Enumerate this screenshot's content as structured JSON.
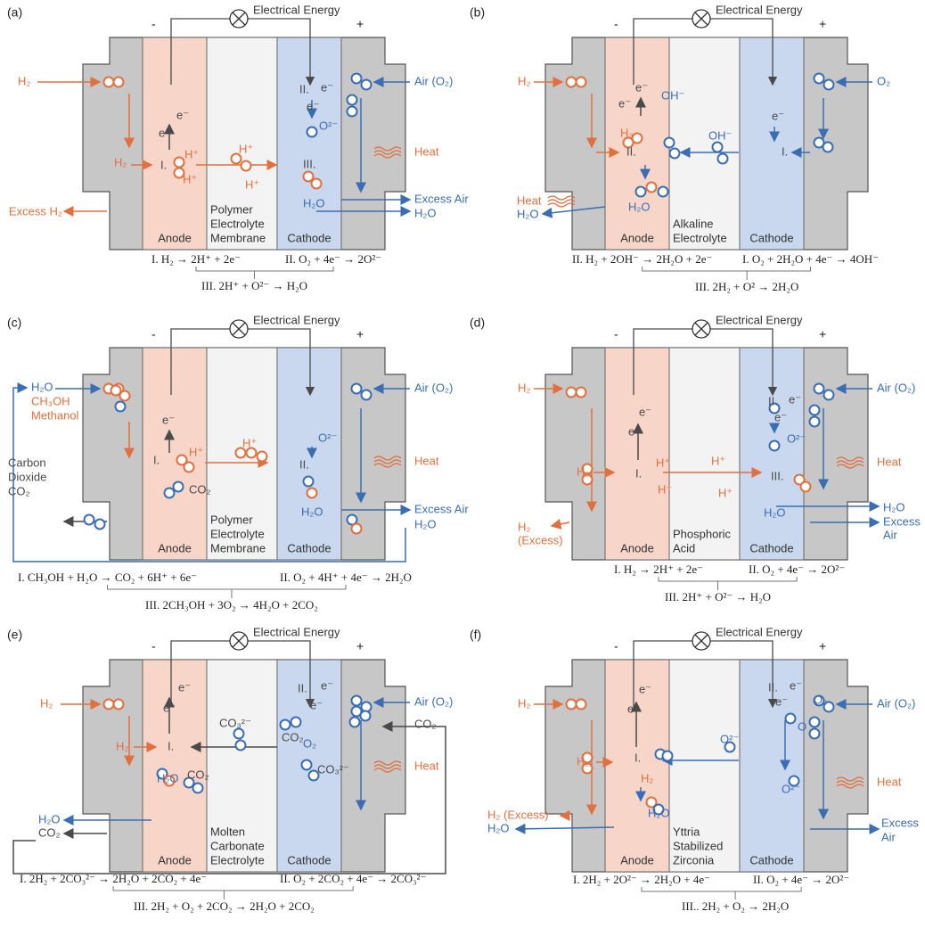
{
  "panels": [
    {
      "label": "(a)",
      "energy": "Electrical Energy",
      "minus": "-",
      "plus": "+",
      "anode": "Anode",
      "electrolyte": [
        "Polymer",
        "Electrolyte",
        "Membrane"
      ],
      "cathode": "Cathode",
      "texts": [
        "H₂",
        "Air (O₂)",
        "H₂",
        "Excess H₂",
        "Heat",
        "Excess Air",
        "H₂O",
        "e⁻",
        "e⁻",
        "I.",
        "H⁺",
        "H⁺",
        "H⁺",
        "H⁺",
        "II.",
        "e⁻",
        "e⁻",
        "O²⁻",
        "III.",
        "H₂O"
      ],
      "equations": [
        "I. H₂ → 2H⁺ + 2e⁻",
        "II. O₂ + 4e⁻ → 2O²⁻",
        "III. 2H⁺ + O²⁻ → H₂O"
      ]
    },
    {
      "label": "(b)",
      "energy": "Electrical Energy",
      "minus": "-",
      "plus": "+",
      "anode": "Anode",
      "electrolyte": [
        "Alkaline",
        "Electrolyte"
      ],
      "cathode": "Cathode",
      "texts": [
        "H₂",
        "O₂",
        "Heat",
        "H₂O",
        "e⁻",
        "e⁻",
        "OH⁻",
        "H₂",
        "II.",
        "OH⁻",
        "e⁻",
        "I.",
        "H₂O"
      ],
      "equations": [
        "II. H₂ + 2OH⁻ → 2H₂O + 2e⁻",
        "I. O₂ + 2H₂O + 4e⁻ → 4OH⁻",
        "III. 2H₂ + O² → 2H₂O"
      ]
    },
    {
      "label": "(c)",
      "energy": "Electrical Energy",
      "minus": "-",
      "plus": "+",
      "anode": "Anode",
      "electrolyte": [
        "Polymer",
        "Electrolyte",
        "Membrane"
      ],
      "cathode": "Cathode",
      "texts": [
        "H₂O",
        "CH₃OH",
        "Methanol",
        "Air (O₂)",
        "Carbon",
        "Dioxide",
        "CO₂",
        "Heat",
        "Excess Air",
        "H₂O",
        "e⁻",
        "I.",
        "H⁺",
        "CO₂",
        "H⁺",
        "II.",
        "O²⁻",
        "H₂O"
      ],
      "equations": [
        "I. CH₃OH + H₂O  → CO₂ + 6H⁺ + 6e⁻",
        "II. O₂ + 4H⁺ + 4e⁻ → 2H₂O",
        "III. 2CH₃OH + 3O₂ → 4H₂O + 2CO₂"
      ]
    },
    {
      "label": "(d)",
      "energy": "Electrical Energy",
      "minus": "-",
      "plus": "+",
      "anode": "Anode",
      "electrolyte": [
        "Phosphoric",
        "Acid"
      ],
      "cathode": "Cathode",
      "texts": [
        "H₂",
        "Air (O₂)",
        "H₂",
        "I.",
        "H⁺",
        "H⁺",
        "H⁺",
        "H⁺",
        "e⁻",
        "e⁻",
        "II.",
        "e⁻",
        "e⁻",
        "O²⁻",
        "III.",
        "H₂O",
        "Heat",
        "H₂O",
        "Excess",
        "Air",
        "H₂",
        "(Excess)"
      ],
      "equations": [
        "I. H₂ → 2H⁺ + 2e⁻",
        "II. O₂ + 4e⁻ → 2O²⁻",
        "III. 2H⁺ + O²⁻ → H₂O"
      ]
    },
    {
      "label": "(e)",
      "energy": "Electrical Energy",
      "minus": "-",
      "plus": "+",
      "anode": "Anode",
      "electrolyte": [
        "Molten",
        "Carbonate",
        "Electrolyte"
      ],
      "cathode": "Cathode",
      "texts": [
        "H₂",
        "Air (O₂)",
        "CO₂",
        "Heat",
        "H₂O",
        "CO₂",
        "e⁻",
        "e⁻",
        "I.",
        "H₂",
        "CO₂",
        "H₂O",
        "CO₃²⁻",
        "II.",
        "e⁻",
        "e⁻",
        "CO₂",
        "O₂",
        "CO₃²⁻"
      ],
      "equations": [
        "I. 2H₂ + 2CO₃²⁻ → 2H₂O + 2CO₂ + 4e⁻",
        "II. O₂ + 2CO₂ + 4e⁻ → 2CO₃²⁻",
        "III. 2H₂ + O₂ + 2CO₂ → 2H₂O + 2CO₂"
      ]
    },
    {
      "label": "(f)",
      "energy": "Electrical Energy",
      "minus": "-",
      "plus": "+",
      "anode": "Anode",
      "electrolyte": [
        "Yttria",
        "Stabilized",
        "Zirconia"
      ],
      "cathode": "Cathode",
      "texts": [
        "H₂",
        "Air (O₂)",
        "O₂",
        "Heat",
        "Excess",
        "Air",
        "H₂ (Excess)",
        "H₂O",
        "e⁻",
        "e⁻",
        "I.",
        "H₂",
        "H₂",
        "O²⁻",
        "II.",
        "e⁻",
        "e⁻",
        "O",
        "O²⁻",
        "H₂O"
      ],
      "equations": [
        "I. 2H₂ + 2O²⁻ → 2H₂O + 4e⁻",
        "II. O₂ + 4e⁻ → 2O²⁻",
        "III.. 2H₂ + O₂ → 2H₂O"
      ]
    }
  ]
}
